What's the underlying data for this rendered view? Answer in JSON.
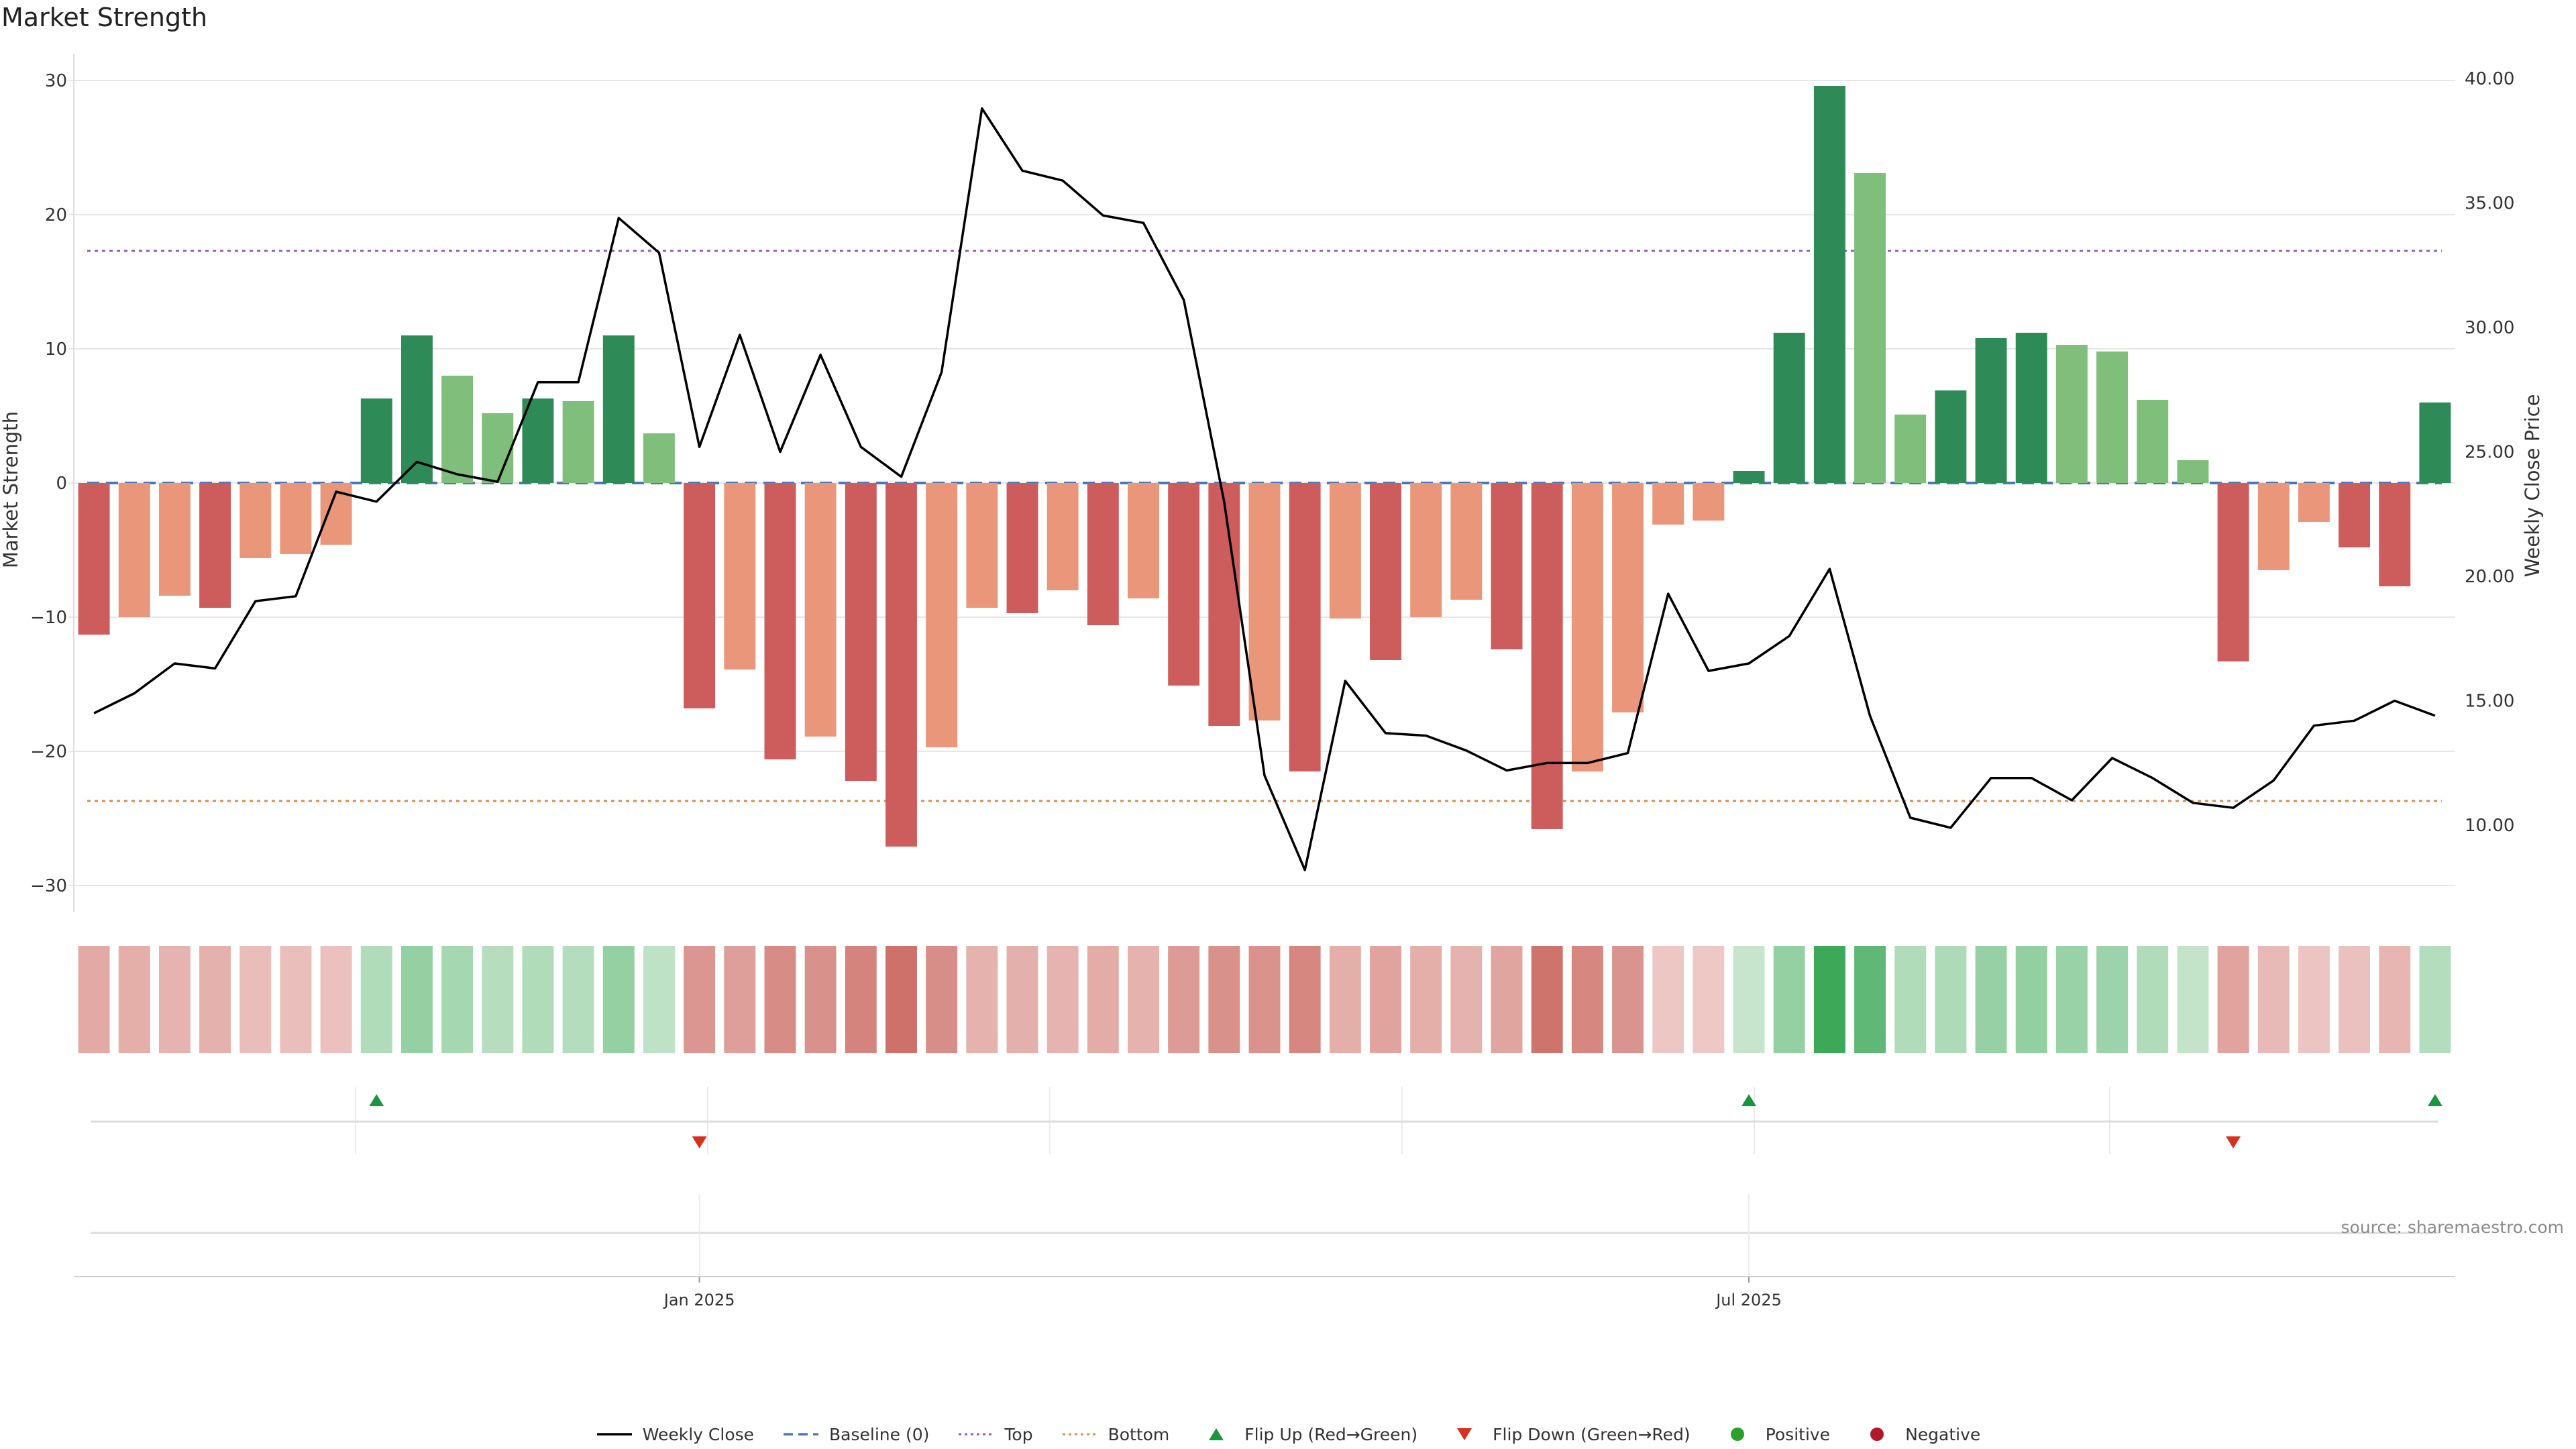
{
  "title": "Market Strength",
  "source_note": "source: sharemaestro.com",
  "colors": {
    "pos_strong": "#2e8b57",
    "pos_light": "#7fbf7b",
    "neg_strong": "#cd5c5c",
    "neg_light": "#e9967a",
    "price_line": "#000000",
    "baseline": "#4a78b5",
    "top": "#9b59b6",
    "bottom": "#e08a4a",
    "flip_up": "#1a9641",
    "flip_down": "#d7301f",
    "positive_dot": "#2ca02c",
    "negative_dot": "#b2182b"
  },
  "legend": [
    {
      "label": "Weekly Close",
      "kind": "line",
      "color": "#000000"
    },
    {
      "label": "Baseline (0)",
      "kind": "dash",
      "color": "#4a78b5"
    },
    {
      "label": "Top",
      "kind": "dot-line",
      "color": "#9b59b6"
    },
    {
      "label": "Bottom",
      "kind": "dot-line",
      "color": "#e08a4a"
    },
    {
      "label": "Flip Up (Red→Green)",
      "kind": "tri-up",
      "color": "#1a9641"
    },
    {
      "label": "Flip Down (Green→Red)",
      "kind": "tri-down",
      "color": "#d7301f"
    },
    {
      "label": "Positive",
      "kind": "dot",
      "color": "#2ca02c"
    },
    {
      "label": "Negative",
      "kind": "dot",
      "color": "#b2182b"
    }
  ],
  "chart_data": {
    "type": "bar",
    "title": "Market Strength",
    "ylabel": "Market Strength",
    "y2label": "Weekly Close Price",
    "ylim": [
      -32,
      32
    ],
    "y2lim": [
      6.5,
      41.0
    ],
    "yticks": [
      -30,
      -20,
      -10,
      0,
      10,
      20,
      30
    ],
    "y2ticks": [
      10,
      15,
      20,
      25,
      30,
      35,
      40
    ],
    "y2tick_labels": [
      "10.00",
      "15.00",
      "20.00",
      "25.00",
      "30.00",
      "35.00",
      "40.00"
    ],
    "xtick_labels": [
      {
        "label": "Jan 2025",
        "index": 15.5
      },
      {
        "label": "Jul 2025",
        "index": 41.5
      }
    ],
    "top_line": 17.3,
    "bottom_line": -23.7,
    "baseline": 0,
    "grid": true,
    "legend_position": "bottom",
    "x_date_range": [
      "2024-08",
      "2025-10"
    ],
    "values": [
      -11.3,
      -10.0,
      -8.4,
      -9.3,
      -5.6,
      -5.3,
      -4.6,
      6.3,
      11.0,
      8.0,
      5.2,
      6.3,
      6.1,
      11.0,
      3.7,
      -16.8,
      -13.9,
      -20.6,
      -18.9,
      -22.2,
      -27.1,
      -19.7,
      -9.3,
      -9.7,
      -8.0,
      -10.6,
      -8.6,
      -15.1,
      -18.1,
      -17.7,
      -21.5,
      -10.1,
      -13.2,
      -10.0,
      -8.7,
      -12.4,
      -25.8,
      -21.5,
      -17.1,
      -3.1,
      -2.8,
      0.9,
      11.2,
      29.6,
      23.1,
      5.1,
      6.9,
      10.8,
      11.2,
      10.3,
      9.8,
      6.2,
      1.7,
      -13.3,
      -6.5,
      -2.9,
      -4.8,
      -7.7,
      6.0
    ],
    "bar_shade": [
      "S",
      "L",
      "L",
      "S",
      "L",
      "L",
      "L",
      "S",
      "S",
      "L",
      "L",
      "S",
      "L",
      "S",
      "L",
      "S",
      "L",
      "S",
      "L",
      "S",
      "S",
      "L",
      "L",
      "S",
      "L",
      "S",
      "L",
      "S",
      "S",
      "L",
      "S",
      "L",
      "S",
      "L",
      "L",
      "S",
      "S",
      "L",
      "L",
      "L",
      "L",
      "S",
      "S",
      "S",
      "L",
      "L",
      "S",
      "S",
      "S",
      "L",
      "L",
      "L",
      "L",
      "S",
      "L",
      "L",
      "S",
      "S",
      "S"
    ],
    "weekly_close": [
      14.5,
      15.3,
      16.5,
      16.3,
      19.0,
      19.2,
      23.4,
      23.0,
      24.6,
      24.1,
      23.8,
      27.8,
      27.8,
      34.4,
      33.0,
      25.2,
      29.7,
      25.0,
      28.9,
      25.2,
      24.0,
      28.2,
      38.8,
      36.3,
      35.9,
      34.5,
      34.2,
      31.1,
      23.0,
      12.0,
      8.2,
      15.8,
      13.7,
      13.6,
      13.0,
      12.2,
      12.5,
      12.5,
      12.9,
      19.3,
      16.2,
      16.5,
      17.6,
      20.3,
      14.4,
      10.3,
      9.9,
      11.9,
      11.9,
      11.0,
      12.7,
      11.9,
      10.9,
      10.7,
      11.8,
      14.0,
      14.2,
      15.0,
      14.4
    ],
    "heat_intensity": [
      0.42,
      0.38,
      0.32,
      0.35,
      0.24,
      0.22,
      0.2,
      0.28,
      0.45,
      0.35,
      0.25,
      0.28,
      0.26,
      0.45,
      0.2,
      0.6,
      0.52,
      0.7,
      0.65,
      0.78,
      0.95,
      0.68,
      0.34,
      0.36,
      0.32,
      0.4,
      0.34,
      0.56,
      0.65,
      0.64,
      0.75,
      0.38,
      0.48,
      0.38,
      0.33,
      0.46,
      0.92,
      0.75,
      0.62,
      0.14,
      0.13,
      0.15,
      0.45,
      1.0,
      0.78,
      0.28,
      0.3,
      0.44,
      0.46,
      0.42,
      0.4,
      0.28,
      0.16,
      0.48,
      0.26,
      0.16,
      0.2,
      0.3,
      0.26
    ],
    "flip_up": [
      7,
      41,
      58
    ],
    "flip_down": [
      15,
      53
    ]
  }
}
